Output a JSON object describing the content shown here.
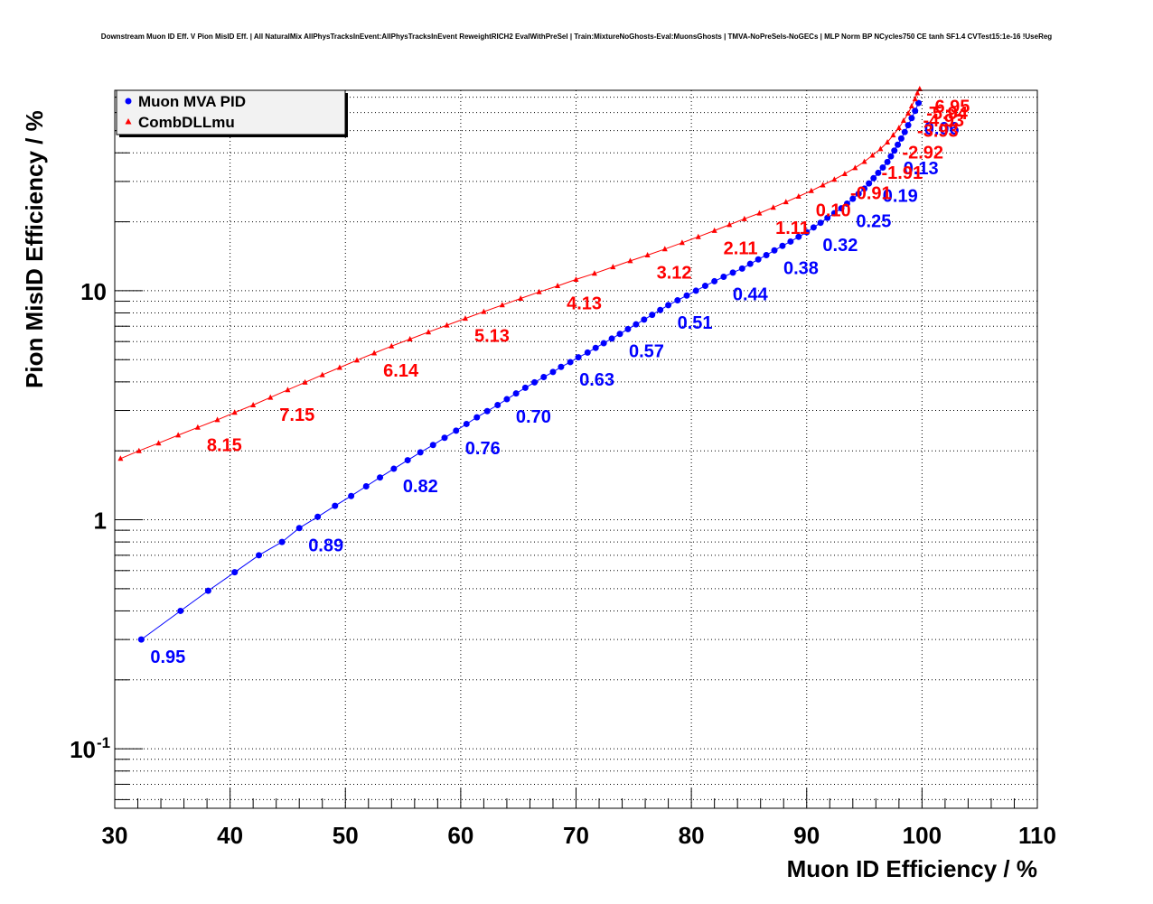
{
  "chart_data": {
    "type": "scatter",
    "title": "Downstream Muon ID Eff. V Pion MisID Eff. | All NaturalMix AllPhysTracksInEvent:AllPhysTracksInEvent ReweightRICH2 EvalWithPreSel | Train:MixtureNoGhosts-Eval:MuonsGhosts | TMVA-NoPreSels-NoGECs | MLP Norm BP NCycles750 CE tanh SF1.4 CVTest15:1e-16 !UseReg",
    "xlabel": "Muon ID Efficiency / %",
    "ylabel": "Pion MisID Efficiency / %",
    "xlim": [
      30,
      110
    ],
    "ylim": [
      0.055,
      75
    ],
    "y_scale": "log",
    "grid": true,
    "legend_position": "top-left",
    "x_ticks": [
      30,
      40,
      50,
      60,
      70,
      80,
      90,
      100,
      110
    ],
    "y_ticks": [
      {
        "value": 0.1,
        "base": "10",
        "exp": "-1"
      },
      {
        "value": 1,
        "base": "1",
        "exp": ""
      },
      {
        "value": 10,
        "base": "10",
        "exp": ""
      }
    ],
    "series": [
      {
        "name": "Muon MVA PID",
        "color": "#0000ff",
        "marker": "circle",
        "x": [
          32.3,
          35.7,
          38.1,
          40.4,
          42.5,
          44.5,
          46.0,
          47.6,
          49.1,
          50.5,
          51.8,
          53.0,
          54.2,
          55.4,
          56.5,
          57.6,
          58.6,
          59.6,
          60.5,
          61.4,
          62.3,
          63.2,
          64.0,
          64.8,
          65.6,
          66.4,
          67.2,
          68.0,
          68.7,
          69.5,
          70.2,
          71.0,
          71.7,
          72.4,
          73.1,
          73.8,
          74.5,
          75.2,
          75.9,
          76.6,
          77.3,
          78.0,
          78.8,
          79.6,
          80.4,
          81.2,
          82.0,
          82.8,
          83.6,
          84.4,
          85.1,
          85.8,
          86.5,
          87.2,
          87.9,
          88.6,
          89.3,
          90.0,
          90.6,
          91.2,
          91.8,
          92.4,
          93.0,
          93.5,
          94.0,
          94.5,
          95.0,
          95.4,
          95.8,
          96.2,
          96.6,
          97.0,
          97.3,
          97.6,
          97.9,
          98.2,
          98.5,
          98.8,
          99.1,
          99.4,
          99.7
        ],
        "y": [
          0.3,
          0.4,
          0.49,
          0.59,
          0.7,
          0.8,
          0.92,
          1.03,
          1.15,
          1.27,
          1.4,
          1.53,
          1.67,
          1.82,
          1.97,
          2.12,
          2.28,
          2.45,
          2.62,
          2.8,
          2.98,
          3.17,
          3.36,
          3.56,
          3.77,
          3.98,
          4.2,
          4.42,
          4.65,
          4.88,
          5.12,
          5.37,
          5.63,
          5.9,
          6.18,
          6.48,
          6.8,
          7.13,
          7.48,
          7.85,
          8.24,
          8.65,
          9.08,
          9.53,
          10.0,
          10.5,
          11.0,
          11.5,
          12.0,
          12.5,
          13.1,
          13.7,
          14.3,
          15.0,
          15.7,
          16.4,
          17.2,
          18.0,
          18.9,
          19.8,
          20.8,
          21.8,
          22.9,
          24.0,
          25.2,
          26.5,
          27.9,
          29.4,
          31.0,
          32.7,
          34.5,
          36.5,
          38.6,
          40.9,
          43.4,
          46.2,
          49.3,
          52.8,
          56.7,
          61.0,
          66.0
        ]
      },
      {
        "name": "CombDLLmu",
        "color": "#ff0000",
        "marker": "triangle",
        "x": [
          30.5,
          32.1,
          33.8,
          35.5,
          37.2,
          38.9,
          40.4,
          42.0,
          43.5,
          45.0,
          46.5,
          48.0,
          49.5,
          51.0,
          52.5,
          54.0,
          55.6,
          57.2,
          58.8,
          60.4,
          62.0,
          63.6,
          65.2,
          66.8,
          68.4,
          70.0,
          71.6,
          73.2,
          74.7,
          76.2,
          77.7,
          79.2,
          80.6,
          82.0,
          83.3,
          84.6,
          85.9,
          87.1,
          88.2,
          89.3,
          90.4,
          91.4,
          92.4,
          93.3,
          94.2,
          95.0,
          95.7,
          96.4,
          97.0,
          97.5,
          98.0,
          98.4,
          98.8,
          99.1,
          99.4,
          99.6,
          99.8
        ],
        "y": [
          1.85,
          2.0,
          2.16,
          2.34,
          2.53,
          2.73,
          2.94,
          3.17,
          3.42,
          3.69,
          3.98,
          4.29,
          4.62,
          4.97,
          5.34,
          5.73,
          6.15,
          6.6,
          7.07,
          7.57,
          8.1,
          8.66,
          9.25,
          9.88,
          10.5,
          11.2,
          11.9,
          12.7,
          13.5,
          14.3,
          15.2,
          16.2,
          17.2,
          18.3,
          19.4,
          20.6,
          21.8,
          23.1,
          24.4,
          25.8,
          27.3,
          28.9,
          30.6,
          32.4,
          34.4,
          36.6,
          39.0,
          41.6,
          44.5,
          47.8,
          51.4,
          55.3,
          59.5,
          64.0,
          68.7,
          73.0,
          76.0
        ]
      }
    ],
    "annotations": [
      {
        "text": "0.95",
        "x": 32.3,
        "y": 0.3,
        "series": 0
      },
      {
        "text": "0.89",
        "x": 46.0,
        "y": 0.92,
        "series": 0
      },
      {
        "text": "0.82",
        "x": 54.2,
        "y": 1.67,
        "series": 0
      },
      {
        "text": "0.76",
        "x": 59.6,
        "y": 2.45,
        "series": 0
      },
      {
        "text": "0.70",
        "x": 64.0,
        "y": 3.36,
        "series": 0
      },
      {
        "text": "0.63",
        "x": 69.5,
        "y": 4.88,
        "series": 0
      },
      {
        "text": "0.57",
        "x": 73.8,
        "y": 6.48,
        "series": 0
      },
      {
        "text": "0.51",
        "x": 78.0,
        "y": 8.65,
        "series": 0
      },
      {
        "text": "0.44",
        "x": 82.8,
        "y": 11.5,
        "series": 0
      },
      {
        "text": "0.38",
        "x": 87.2,
        "y": 15.0,
        "series": 0
      },
      {
        "text": "0.32",
        "x": 90.6,
        "y": 18.9,
        "series": 0
      },
      {
        "text": "0.25",
        "x": 93.5,
        "y": 24.0,
        "series": 0
      },
      {
        "text": "0.19",
        "x": 95.8,
        "y": 31.0,
        "series": 0
      },
      {
        "text": "0.13",
        "x": 97.6,
        "y": 40.9,
        "series": 0
      },
      {
        "text": "0.06",
        "x": 99.4,
        "y": 61.0,
        "series": 0
      },
      {
        "text": "8.15",
        "x": 37.2,
        "y": 2.53,
        "series": 1
      },
      {
        "text": "7.15",
        "x": 43.5,
        "y": 3.42,
        "series": 1
      },
      {
        "text": "6.14",
        "x": 52.5,
        "y": 5.34,
        "series": 1
      },
      {
        "text": "5.13",
        "x": 60.4,
        "y": 7.57,
        "series": 1
      },
      {
        "text": "4.13",
        "x": 68.4,
        "y": 10.5,
        "series": 1
      },
      {
        "text": "3.12",
        "x": 76.2,
        "y": 14.3,
        "series": 1
      },
      {
        "text": "2.11",
        "x": 82.0,
        "y": 18.3,
        "series": 1
      },
      {
        "text": "1.11",
        "x": 86.5,
        "y": 22.4,
        "series": 1
      },
      {
        "text": "0.10",
        "x": 90.0,
        "y": 26.8,
        "series": 1
      },
      {
        "text": "-0.91",
        "x": 93.0,
        "y": 31.8,
        "series": 1
      },
      {
        "text": "-1.91",
        "x": 95.7,
        "y": 39.0,
        "series": 1
      },
      {
        "text": "-2.92",
        "x": 97.5,
        "y": 47.8,
        "series": 1
      },
      {
        "text": "-3.93",
        "x": 98.8,
        "y": 59.5,
        "series": 1
      },
      {
        "text": "-4.93",
        "x": 99.3,
        "y": 66.0,
        "series": 1
      },
      {
        "text": "-5.94",
        "x": 99.6,
        "y": 71.0,
        "series": 1
      },
      {
        "text": "-6.95",
        "x": 99.8,
        "y": 76.0,
        "series": 1
      }
    ]
  }
}
